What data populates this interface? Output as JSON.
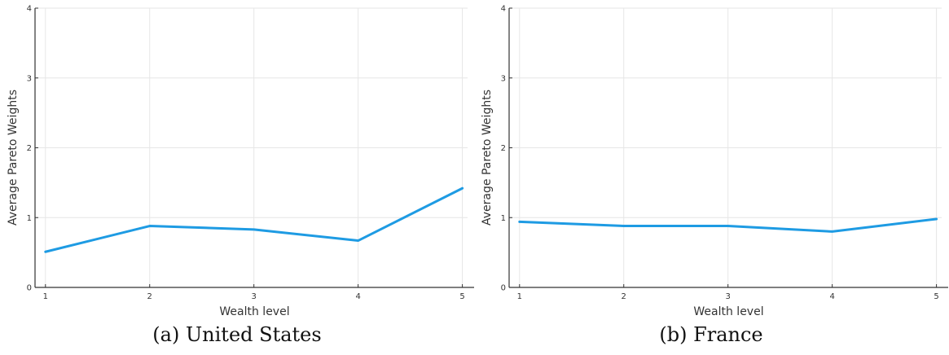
{
  "accent_color": "#1e9be3",
  "chart_data": [
    {
      "type": "line",
      "caption": "(a) United States",
      "xlabel": "Wealth level",
      "ylabel": "Average Pareto Weights",
      "x": [
        1,
        2,
        3,
        4,
        5
      ],
      "xticks": [
        "1",
        "2",
        "3",
        "4",
        "5"
      ],
      "yticks": [
        "0",
        "1",
        "2",
        "3",
        "4"
      ],
      "xlim": [
        0.9,
        5.05
      ],
      "ylim": [
        0,
        4
      ],
      "grid": true,
      "series": [
        {
          "values": [
            0.51,
            0.88,
            0.83,
            0.67,
            1.42
          ],
          "color": "#1e9be3"
        }
      ]
    },
    {
      "type": "line",
      "caption": "(b) France",
      "xlabel": "Wealth level",
      "ylabel": "Average Pareto Weights",
      "x": [
        1,
        2,
        3,
        4,
        5
      ],
      "xticks": [
        "1",
        "2",
        "3",
        "4",
        "5"
      ],
      "yticks": [
        "0",
        "1",
        "2",
        "3",
        "4"
      ],
      "xlim": [
        0.9,
        5.05
      ],
      "ylim": [
        0,
        4
      ],
      "grid": true,
      "series": [
        {
          "values": [
            0.94,
            0.88,
            0.88,
            0.8,
            0.98
          ],
          "color": "#1e9be3"
        }
      ]
    }
  ]
}
